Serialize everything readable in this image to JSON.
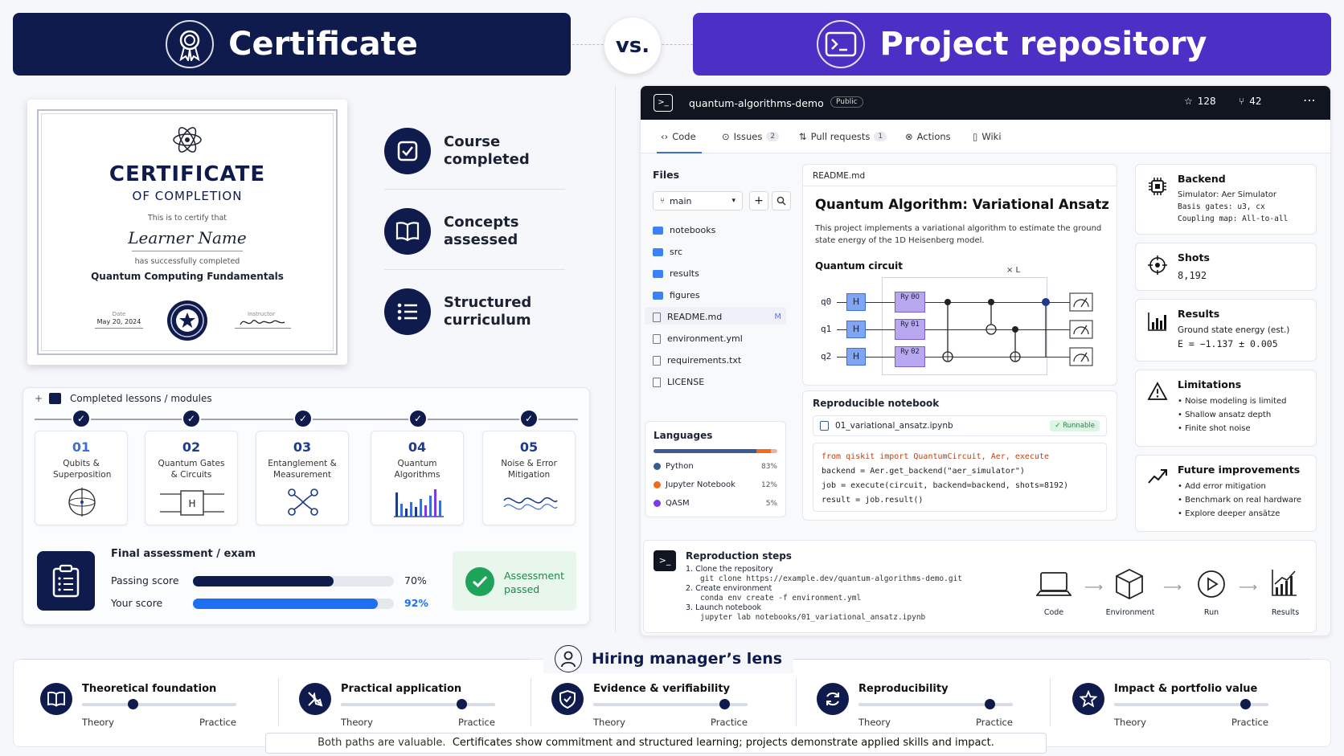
{
  "header": {
    "left_title": "Certificate",
    "vs": "vs.",
    "right_title": "Project repository"
  },
  "certificate": {
    "title": "CERTIFICATE",
    "subtitle": "OF COMPLETION",
    "certify": "This is to certify that",
    "name": "Learner Name",
    "completed": "has successfully completed",
    "course": "Quantum Computing Fundamentals",
    "date_label": "Date",
    "date": "May 20, 2024",
    "instructor_label": "Instructor"
  },
  "features": [
    {
      "label": "Course completed",
      "icon": "check-box-icon"
    },
    {
      "label": "Concepts assessed",
      "icon": "book-icon"
    },
    {
      "label": "Structured curriculum",
      "icon": "list-icon"
    }
  ],
  "lessons": {
    "title": "Completed lessons / modules",
    "items": [
      {
        "num": "01",
        "label": "Qubits & Superposition"
      },
      {
        "num": "02",
        "label": "Quantum Gates & Circuits"
      },
      {
        "num": "03",
        "label": "Entanglement & Measurement"
      },
      {
        "num": "04",
        "label": "Quantum Algorithms"
      },
      {
        "num": "05",
        "label": "Noise & Error Mitigation"
      }
    ]
  },
  "assessment": {
    "title": "Final assessment / exam",
    "passing_label": "Passing score",
    "passing_value": "70%",
    "passing_fraction": 0.7,
    "your_label": "Your score",
    "your_value": "92%",
    "your_fraction": 0.92,
    "badge": "Assessment passed"
  },
  "repo": {
    "name": "quantum-algorithms-demo",
    "visibility": "Public",
    "stars": "128",
    "forks": "42",
    "tabs": [
      {
        "label": "Code",
        "count": ""
      },
      {
        "label": "Issues",
        "count": "2"
      },
      {
        "label": "Pull requests",
        "count": "1"
      },
      {
        "label": "Actions",
        "count": ""
      },
      {
        "label": "Wiki",
        "count": ""
      }
    ],
    "files_title": "Files",
    "branch": "main",
    "files": [
      {
        "name": "notebooks",
        "type": "folder"
      },
      {
        "name": "src",
        "type": "folder"
      },
      {
        "name": "results",
        "type": "folder"
      },
      {
        "name": "figures",
        "type": "folder"
      },
      {
        "name": "README.md",
        "type": "file",
        "badge": "M"
      },
      {
        "name": "environment.yml",
        "type": "file"
      },
      {
        "name": "requirements.txt",
        "type": "file"
      },
      {
        "name": "LICENSE",
        "type": "file"
      }
    ],
    "languages_title": "Languages",
    "languages": [
      {
        "name": "Python",
        "pct": "83%",
        "color": "#3b5b92"
      },
      {
        "name": "Jupyter Notebook",
        "pct": "12%",
        "color": "#f26b1d"
      },
      {
        "name": "QASM",
        "pct": "5%",
        "color": "#7c3aed"
      }
    ],
    "readme": {
      "file": "README.md",
      "title": "Quantum Algorithm: Variational Ansatz",
      "desc": "This project implements a variational algorithm to estimate the ground state energy of the 1D Heisenberg model.",
      "circuit_title": "Quantum circuit",
      "repeat": "× L",
      "qubits": [
        "q0",
        "q1",
        "q2"
      ],
      "gate_h": "H",
      "gate_ry": [
        "Ry θ0",
        "Ry θ1",
        "Ry θ2"
      ]
    },
    "notebook": {
      "title": "Reproducible notebook",
      "file": "01_variational_ansatz.ipynb",
      "badge": "✓ Runnable",
      "code": [
        "from qiskit import QuantumCircuit, Aer, execute",
        "backend = Aer.get_backend(\"aer_simulator\")",
        "job = execute(circuit, backend=backend, shots=8192)",
        "result = job.result()"
      ]
    },
    "side": [
      {
        "title": "Backend",
        "lines": [
          "Simulator: Aer Simulator",
          "Basis gates: u3, cx",
          "Coupling map: All-to-all"
        ],
        "icon": "chip-icon"
      },
      {
        "title": "Shots",
        "lines": [
          "8,192"
        ],
        "icon": "target-icon"
      },
      {
        "title": "Results",
        "lines": [
          "Ground state energy (est.)",
          "E = −1.137 ± 0.005"
        ],
        "icon": "bar-chart-icon"
      },
      {
        "title": "Limitations",
        "lines": [
          "• Noise modeling is limited",
          "• Shallow ansatz depth",
          "• Finite shot noise"
        ],
        "icon": "warning-icon"
      },
      {
        "title": "Future improvements",
        "lines": [
          "• Add error mitigation",
          "• Benchmark on real hardware",
          "• Explore deeper ansätze"
        ],
        "icon": "trend-icon"
      }
    ],
    "repro": {
      "title": "Reproduction steps",
      "steps": [
        {
          "label": "1.  Clone the repository",
          "cmd": "git clone https://example.dev/quantum-algorithms-demo.git"
        },
        {
          "label": "2.  Create environment",
          "cmd": "conda env create -f environment.yml"
        },
        {
          "label": "3.  Launch notebook",
          "cmd": "jupyter lab notebooks/01_variational_ansatz.ipynb"
        }
      ],
      "flow": [
        "Code",
        "Environment",
        "Run",
        "Results"
      ]
    }
  },
  "lens": {
    "title": "Hiring manager’s lens",
    "theory": "Theory",
    "practice": "Practice",
    "items": [
      {
        "title": "Theoretical foundation",
        "position": 0.33,
        "icon": "book-icon"
      },
      {
        "title": "Practical application",
        "position": 0.78,
        "icon": "tools-icon"
      },
      {
        "title": "Evidence & verifiability",
        "position": 0.85,
        "icon": "shield-check-icon"
      },
      {
        "title": "Reproducibility",
        "position": 0.85,
        "icon": "cycle-icon"
      },
      {
        "title": "Impact & portfolio value",
        "position": 0.85,
        "icon": "star-icon"
      }
    ],
    "footer_lead": "Both paths are valuable.",
    "footer_rest": "Certificates show commitment and structured learning; projects demonstrate applied skills and impact."
  },
  "colors": {
    "navy": "#0f1b4d",
    "purple": "#4c2fc4",
    "green": "#1fa35a",
    "blue": "#1e6ff2"
  }
}
